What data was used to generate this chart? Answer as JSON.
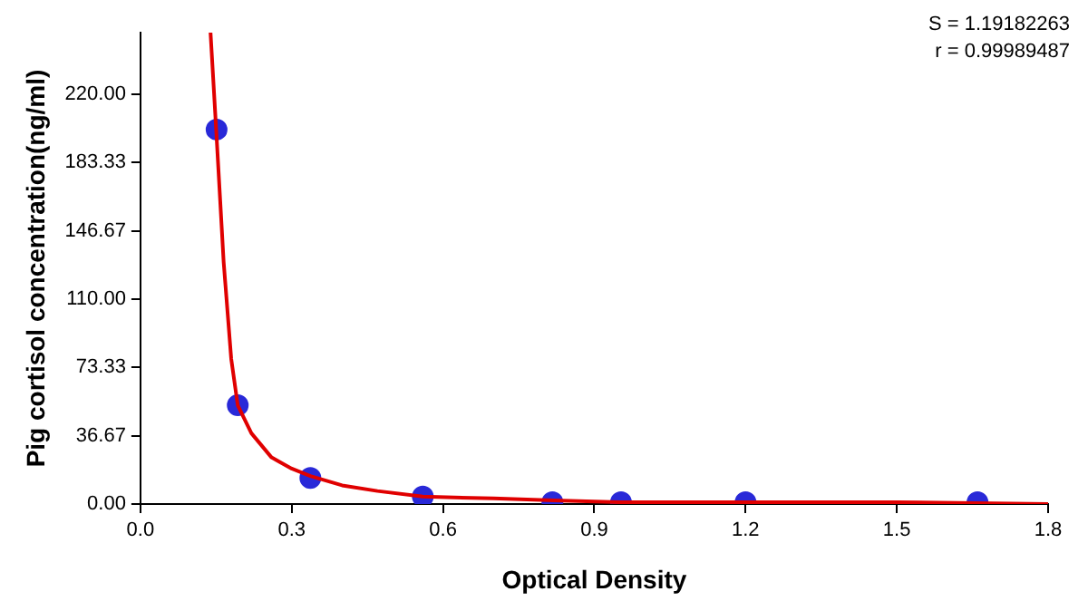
{
  "chart_data": {
    "type": "scatter",
    "xlabel": "Optical Density",
    "ylabel": "Pig cortisol concentration(ng/ml)",
    "annotations": [
      "S = 1.19182263",
      "r = 0.99989487"
    ],
    "xlim": [
      0,
      1.8
    ],
    "ylim": [
      0,
      253
    ],
    "xticks": [
      {
        "value": 0,
        "label": "0.0"
      },
      {
        "value": 0.3,
        "label": "0.3"
      },
      {
        "value": 0.6,
        "label": "0.6"
      },
      {
        "value": 0.9,
        "label": "0.9"
      },
      {
        "value": 1.2,
        "label": "1.2"
      },
      {
        "value": 1.5,
        "label": "1.5"
      },
      {
        "value": 1.8,
        "label": "1.8"
      }
    ],
    "yticks": [
      {
        "value": 0,
        "label": "0.00"
      },
      {
        "value": 36.67,
        "label": "36.67"
      },
      {
        "value": 73.33,
        "label": "73.33"
      },
      {
        "value": 110,
        "label": "110.00"
      },
      {
        "value": 146.67,
        "label": "146.67"
      },
      {
        "value": 183.33,
        "label": "183.33"
      },
      {
        "value": 220,
        "label": "220.00"
      }
    ],
    "grid": false,
    "legend": false,
    "marker": "circle",
    "series": [
      {
        "type": "line",
        "color": "#e00000",
        "marker": "none",
        "x": [
          0.139,
          0.15,
          0.165,
          0.18,
          0.193,
          0.22,
          0.26,
          0.3,
          0.337,
          0.4,
          0.47,
          0.56,
          0.7,
          0.82,
          0.95,
          1.2,
          1.5,
          1.8
        ],
        "values": [
          253,
          202,
          130,
          78,
          53,
          38,
          25,
          19,
          15,
          10,
          7,
          4,
          3,
          2,
          1,
          1,
          1,
          0
        ]
      },
      {
        "color": "#2929d8",
        "x": [
          0.151,
          0.193,
          0.337,
          0.56,
          0.817,
          0.953,
          1.2,
          1.66
        ],
        "values": [
          201,
          53,
          14,
          4,
          1,
          1,
          1,
          1
        ]
      }
    ]
  }
}
